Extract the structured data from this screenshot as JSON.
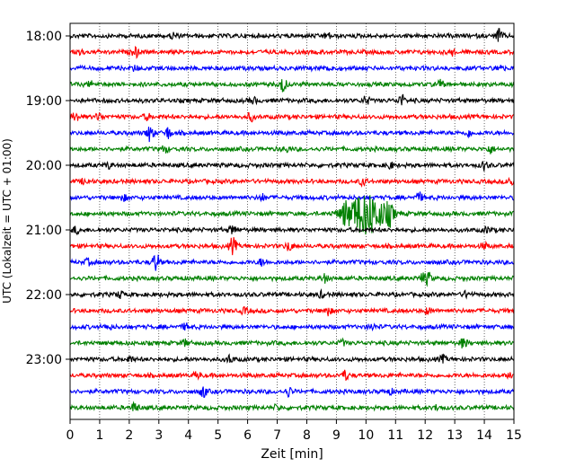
{
  "chart_data": {
    "type": "line",
    "xlabel": "Zeit  [min]",
    "ylabel": "UTC (Lokalzeit = UTC + 01:00)",
    "xlim": [
      0,
      15
    ],
    "x_ticks": [
      "0",
      "1",
      "2",
      "3",
      "4",
      "5",
      "6",
      "7",
      "8",
      "9",
      "10",
      "11",
      "12",
      "13",
      "14",
      "15"
    ],
    "y_ticks": [
      "18:00",
      "19:00",
      "20:00",
      "21:00",
      "22:00",
      "23:00"
    ],
    "grid": "vertical dotted at each minute",
    "trace_colors": [
      "#000000",
      "#ff0000",
      "#0000ff",
      "#008000"
    ],
    "traces": [
      {
        "start": "18:00",
        "events": [
          [
            14.5,
            0.7
          ],
          [
            3.5,
            0.35
          ],
          [
            8.7,
            0.3
          ]
        ]
      },
      {
        "start": "18:15",
        "events": [
          [
            2.2,
            0.5
          ],
          [
            0.3,
            0.3
          ],
          [
            12.9,
            0.3
          ]
        ]
      },
      {
        "start": "18:30",
        "events": [
          [
            14.5,
            0.35
          ],
          [
            8.8,
            0.3
          ],
          [
            2.2,
            0.25
          ]
        ]
      },
      {
        "start": "18:45",
        "events": [
          [
            7.2,
            0.8
          ],
          [
            12.5,
            0.4
          ],
          [
            0.7,
            0.25
          ]
        ]
      },
      {
        "start": "19:00",
        "events": [
          [
            11.2,
            0.6
          ],
          [
            10.0,
            0.45
          ],
          [
            6.2,
            0.3
          ]
        ]
      },
      {
        "start": "19:15",
        "events": [
          [
            0.2,
            0.5
          ],
          [
            1.0,
            0.4
          ],
          [
            6.1,
            0.4
          ],
          [
            2.6,
            0.3
          ]
        ]
      },
      {
        "start": "19:30",
        "events": [
          [
            2.7,
            0.9
          ],
          [
            3.3,
            0.6
          ],
          [
            13.5,
            0.35
          ]
        ]
      },
      {
        "start": "19:45",
        "events": [
          [
            14.2,
            0.4
          ],
          [
            3.2,
            0.35
          ],
          [
            7.3,
            0.25
          ]
        ]
      },
      {
        "start": "20:00",
        "events": [
          [
            14.0,
            0.45
          ],
          [
            10.8,
            0.35
          ],
          [
            1.3,
            0.3
          ]
        ]
      },
      {
        "start": "20:15",
        "events": [
          [
            14.9,
            0.5
          ],
          [
            9.9,
            0.4
          ],
          [
            0.5,
            0.3
          ]
        ]
      },
      {
        "start": "20:30",
        "events": [
          [
            11.8,
            0.45
          ],
          [
            6.5,
            0.35
          ],
          [
            1.8,
            0.3
          ]
        ]
      },
      {
        "start": "20:45",
        "events": [
          [
            10.0,
            2.4
          ],
          [
            9.3,
            0.8
          ],
          [
            10.8,
            0.9
          ]
        ]
      },
      {
        "start": "21:00",
        "events": [
          [
            5.5,
            0.45
          ],
          [
            0.2,
            0.35
          ],
          [
            14.1,
            0.3
          ]
        ]
      },
      {
        "start": "21:15",
        "events": [
          [
            5.5,
            0.9
          ],
          [
            7.4,
            0.5
          ],
          [
            14.0,
            0.3
          ]
        ]
      },
      {
        "start": "21:30",
        "events": [
          [
            2.9,
            1.0
          ],
          [
            6.5,
            0.4
          ],
          [
            0.6,
            0.3
          ]
        ]
      },
      {
        "start": "21:45",
        "events": [
          [
            12.1,
            0.6
          ],
          [
            8.6,
            0.4
          ],
          [
            11.9,
            0.4
          ]
        ]
      },
      {
        "start": "22:00",
        "events": [
          [
            1.7,
            0.35
          ],
          [
            8.5,
            0.3
          ],
          [
            13.4,
            0.3
          ]
        ]
      },
      {
        "start": "22:15",
        "events": [
          [
            8.7,
            0.5
          ],
          [
            5.9,
            0.3
          ],
          [
            12.1,
            0.3
          ]
        ]
      },
      {
        "start": "22:30",
        "events": [
          [
            3.9,
            0.3
          ],
          [
            10.2,
            0.3
          ],
          [
            1.3,
            0.25
          ]
        ]
      },
      {
        "start": "22:45",
        "events": [
          [
            13.3,
            0.5
          ],
          [
            3.9,
            0.35
          ],
          [
            9.2,
            0.3
          ]
        ]
      },
      {
        "start": "23:00",
        "events": [
          [
            5.4,
            0.4
          ],
          [
            12.6,
            0.35
          ],
          [
            2.0,
            0.3
          ]
        ]
      },
      {
        "start": "23:15",
        "events": [
          [
            9.3,
            0.5
          ],
          [
            14.9,
            0.4
          ],
          [
            4.3,
            0.3
          ]
        ]
      },
      {
        "start": "23:30",
        "events": [
          [
            4.5,
            0.6
          ],
          [
            7.4,
            0.5
          ],
          [
            10.8,
            0.25
          ]
        ]
      },
      {
        "start": "23:45",
        "events": [
          [
            2.2,
            0.55
          ],
          [
            7.0,
            0.25
          ],
          [
            12.4,
            0.25
          ]
        ]
      }
    ]
  }
}
